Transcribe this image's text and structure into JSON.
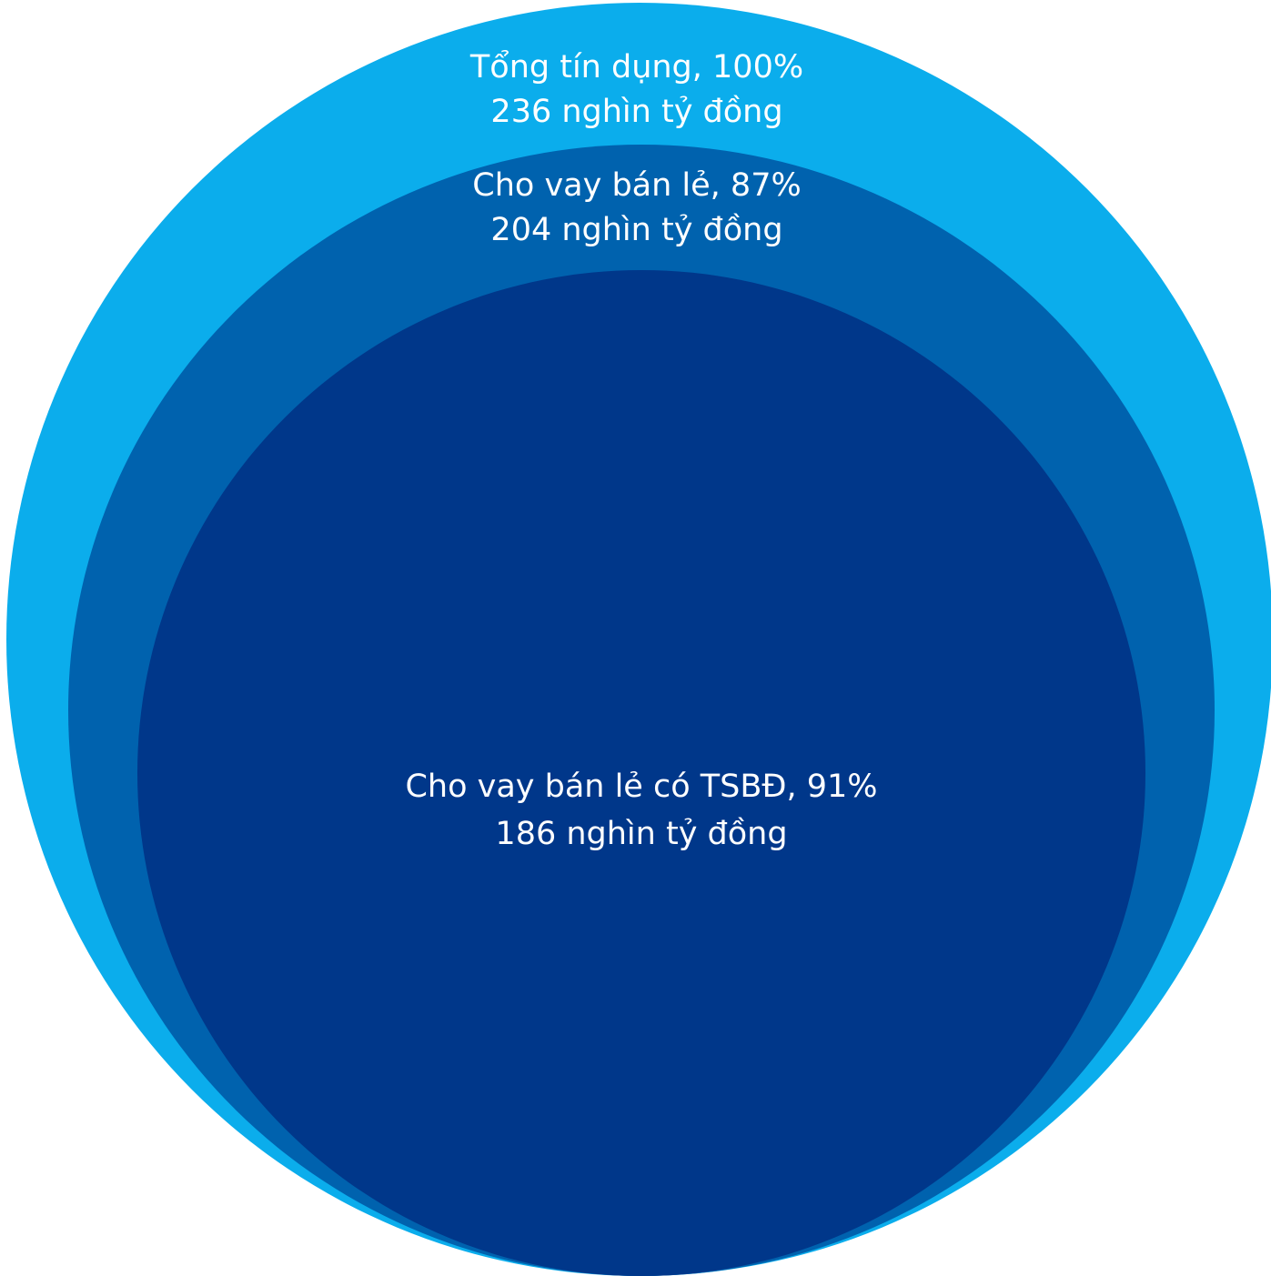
{
  "diagram": {
    "type": "nested-circles",
    "colors": {
      "outer": "#0badec",
      "middle": "#0062ae",
      "inner": "#00378a",
      "text": "#ffffff"
    },
    "levels": [
      {
        "id": "total",
        "name": "Tổng tín dụng",
        "percent": "100%",
        "value_text": "236 nghìn tỷ đồng",
        "label_line1": "Tổng tín dụng, 100%",
        "label_line2": "236 nghìn tỷ đồng"
      },
      {
        "id": "retail",
        "name": "Cho vay bán lẻ",
        "percent": "87%",
        "value_text": "204 nghìn tỷ đồng",
        "label_line1": "Cho vay bán lẻ, 87%",
        "label_line2": "204 nghìn tỷ đồng"
      },
      {
        "id": "retail-secured",
        "name": "Cho vay bán lẻ có TSBĐ",
        "percent": "91%",
        "value_text": "186 nghìn tỷ đồng",
        "label_line1": "Cho vay bán lẻ có TSBĐ, 91%",
        "label_line2": "186 nghìn tỷ đồng"
      }
    ]
  }
}
